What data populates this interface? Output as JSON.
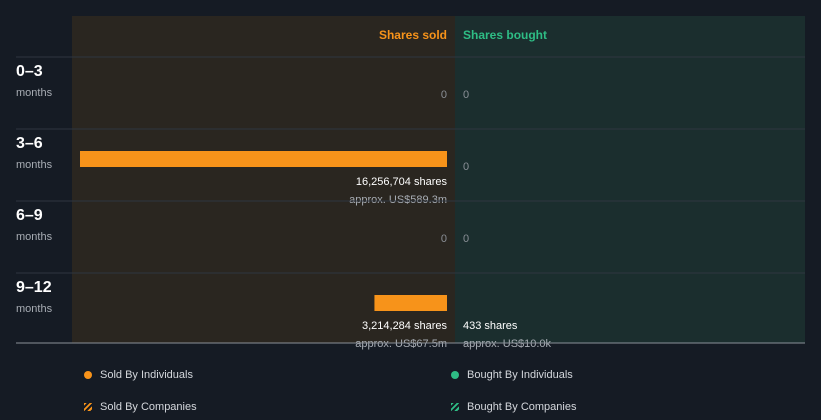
{
  "chart_data": {
    "type": "bar",
    "orientation": "horizontal",
    "columns": {
      "sold": "Shares sold",
      "bought": "Shares bought"
    },
    "categories": [
      {
        "label": "0–3",
        "sub": "months"
      },
      {
        "label": "3–6",
        "sub": "months"
      },
      {
        "label": "6–9",
        "sub": "months"
      },
      {
        "label": "9–12",
        "sub": "months"
      }
    ],
    "series": [
      {
        "name": "Shares sold",
        "color": "#f7931a",
        "values": [
          0,
          16256704,
          0,
          3214284
        ],
        "labels": [
          "0",
          "16,256,704 shares",
          "0",
          "3,214,284 shares"
        ],
        "sublabels": [
          "",
          "approx. US$589.3m",
          "",
          "approx. US$67.5m"
        ]
      },
      {
        "name": "Shares bought",
        "color": "#2ebd85",
        "values": [
          0,
          0,
          0,
          433
        ],
        "labels": [
          "0",
          "0",
          "0",
          "433 shares"
        ],
        "sublabels": [
          "",
          "",
          "",
          "approx. US$10.0k"
        ]
      }
    ],
    "legend_position": "bottom",
    "legend": [
      {
        "label": "Sold By Individuals",
        "color": "#f7931a",
        "icon": "dot-icon"
      },
      {
        "label": "Bought By Individuals",
        "color": "#2ebd85",
        "icon": "dot-icon"
      },
      {
        "label": "Sold By Companies",
        "color": "#f7931a",
        "icon": "striped-icon"
      },
      {
        "label": "Bought By Companies",
        "color": "#2ebd85",
        "icon": "striped-icon"
      }
    ]
  },
  "colors": {
    "background": "#151b24",
    "sold_panel": "#2a2620",
    "bought_panel": "#1b2e2e",
    "sold_accent": "#f7931a",
    "bought_accent": "#2ebd85",
    "zero_text": "#8a8f96"
  }
}
